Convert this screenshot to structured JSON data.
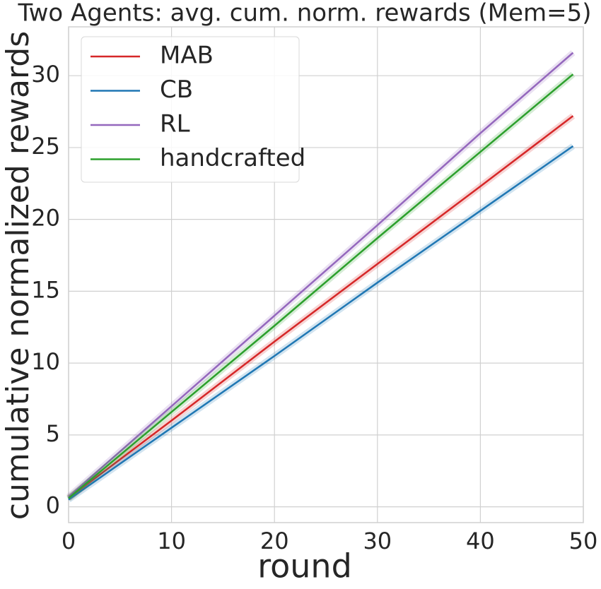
{
  "chart_data": {
    "type": "line",
    "title": "Two Agents: avg. cum. norm. rewards (Mem=5)",
    "x_label": "round",
    "y_label": "cumulative normalized rewards",
    "x": [
      0,
      10,
      20,
      30,
      40,
      49
    ],
    "series": [
      {
        "name": "MAB",
        "color": "#d62728",
        "values": [
          0.6,
          6.0,
          11.5,
          16.9,
          22.3,
          27.2
        ]
      },
      {
        "name": "CB",
        "color": "#1f77b4",
        "values": [
          0.5,
          5.5,
          10.5,
          15.6,
          20.6,
          25.1
        ]
      },
      {
        "name": "RL",
        "color": "#9467bd",
        "values": [
          0.7,
          7.0,
          13.3,
          19.6,
          26.0,
          31.6
        ]
      },
      {
        "name": "handcrafted",
        "color": "#2ca02c",
        "values": [
          0.6,
          6.6,
          12.6,
          18.7,
          24.7,
          30.1
        ]
      }
    ],
    "xlim": [
      0,
      50
    ],
    "ylim": [
      -1.1,
      33.4
    ],
    "xticks": [
      0,
      10,
      20,
      30,
      40,
      50
    ],
    "yticks": [
      0,
      5,
      10,
      15,
      20,
      25,
      30
    ],
    "grid": true,
    "legend": "upper left"
  }
}
